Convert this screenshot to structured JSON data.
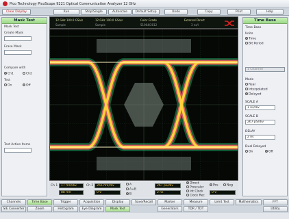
{
  "window": {
    "title": "Pico Technology   PicoScope 9221   Optical Communication Analyzer 12 GHz"
  },
  "toolbar": {
    "buttons": [
      "Clear Display",
      "Run",
      "Stop/Single",
      "Autoscale",
      "Default Setup",
      "Undo",
      "Copy",
      "Print",
      "Help"
    ]
  },
  "left_panel": {
    "title": "Mask Test",
    "mask_test_label": "Mask Test",
    "create_mask_label": "Create Mask",
    "erase_mask_label": "Erase Mask",
    "compare_with_label": "Compare with",
    "compare_options": [
      "Ch1",
      "Ch2"
    ],
    "test_label": "Test",
    "test_options": [
      "On",
      "Off"
    ],
    "test_selected": "Off",
    "test_action_label": "Test Action Items"
  },
  "info_strip": {
    "ch1_freq": "12 GHz",
    "ch1_rate": "100.0 GSa/s",
    "ch1_mode": "Sample",
    "ch2_freq": "12 GHz",
    "ch2_rate": "100.0 GSa/s",
    "ch2_mode": "Sample",
    "color_grade": "Color Grade",
    "color_grade_value": "51904/2012",
    "trigger_label": "External Direct",
    "trigger_value": "3 ns/l"
  },
  "bottom_bar": {
    "ch1_label": "Ch 1",
    "ch1_scale": "17 mV/div",
    "ch1_offset": "88 mV",
    "ch2_label": "Ch 2",
    "ch2_scale": "266 mV/div",
    "ch2_offset": "0 V",
    "a_label": "A",
    "a_value": "267 pS/div",
    "ab_label": "A+B",
    "b_label": "B",
    "b_value": "2 ns",
    "trigger_modes": [
      "Direct",
      "Prescaler",
      "Int Clock",
      "Clock Rec"
    ],
    "trigger_selected": "Direct",
    "slope_pos": "Pos",
    "slope_neg": "Neg",
    "level_value": "0 V"
  },
  "right_panel": {
    "title": "Time Base",
    "section_time_base": "Time Base",
    "units_label": "Units",
    "units_options": [
      "Time",
      "Bit Period"
    ],
    "units_selected": "Time",
    "mode_label": "Mode",
    "mode_options": [
      "Real",
      "Interpolated",
      "Delayed"
    ],
    "mode_selected": "Delayed",
    "scale_a_label": "SCALE A",
    "scale_a_value": "1 ns/div",
    "scale_b_label": "SCALE B",
    "scale_b_value": "267 pS/div",
    "delay_label": "DELAY",
    "delay_value": "2 ns",
    "dual_delayed_label": "Dual Delayed",
    "dual_options": [
      "On",
      "Off"
    ],
    "dual_selected": "Off",
    "dropdown_value": "1 Channel"
  },
  "tabs_row1": [
    "Channels",
    "Time Base",
    "Trigger",
    "Acquisition",
    "Display",
    "Save/Recall",
    "Marker",
    "Measure",
    "Limit Test",
    "Mathematics",
    "FFT"
  ],
  "tabs_row2": [
    "S/E Converter",
    "Zoom",
    "Histogram",
    "Eye Diagram",
    "Mask Test",
    "",
    "Generators",
    "TDR / TDT",
    "",
    "",
    "Utility"
  ],
  "active_tab_row1": "Time Base",
  "active_tab_row2": "Mask Test",
  "colors": {
    "accent_green": "#9ed98a",
    "trace_hot": "#ffd23a",
    "trace_mid": "#ff5a6a",
    "trace_cool": "#26c070",
    "mask_grey": "#6e7a72",
    "screen_bg": "#050805"
  }
}
